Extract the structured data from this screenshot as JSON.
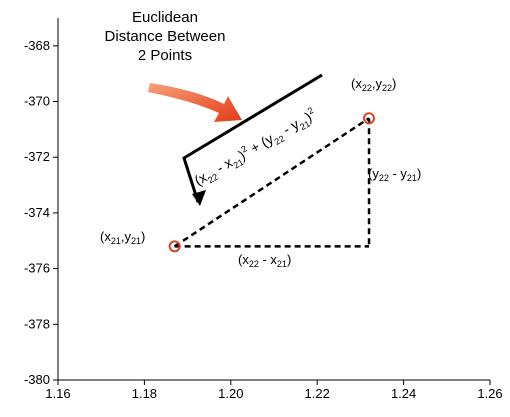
{
  "title": {
    "lines": [
      "Euclidean",
      "Distance Between",
      "2 Points"
    ]
  },
  "axes": {
    "x_ticks": [
      "1.16",
      "1.18",
      "1.20",
      "1.22",
      "1.24",
      "1.26"
    ],
    "y_ticks": [
      "-368",
      "-370",
      "-372",
      "-374",
      "-376",
      "-378",
      "-380"
    ],
    "x_range": [
      1.16,
      1.26
    ],
    "y_range": [
      -380,
      -367
    ],
    "x_tick_values": [
      1.16,
      1.18,
      1.2,
      1.22,
      1.24,
      1.26
    ],
    "y_tick_values": [
      -368,
      -370,
      -372,
      -374,
      -376,
      -378,
      -380
    ]
  },
  "points": [
    {
      "x": 1.187,
      "y": -375.2,
      "label_base": "(x",
      "label_sub1": "21",
      "label_mid": ",y",
      "label_sub2": "21",
      "label_end": ")"
    },
    {
      "x": 1.232,
      "y": -370.6,
      "label_base": "(x",
      "label_sub1": "22",
      "label_mid": ",y",
      "label_sub2": "22",
      "label_end": ")"
    }
  ],
  "delta_x_label": {
    "a": "(x",
    "s1": "22",
    "m": " - x",
    "s2": "21",
    "e": ")"
  },
  "delta_y_label": {
    "a": "(y",
    "s1": "22",
    "m": " - y",
    "s2": "21",
    "e": ")"
  },
  "formula": {
    "p1": "(x",
    "s1": "22",
    "p2": " - x",
    "s2": "21",
    "p3": ")",
    "e1": "2",
    "p4": " + (y",
    "s3": "22",
    "p5": " - y",
    "s4": "21",
    "p6": ")",
    "e2": "2"
  },
  "colors": {
    "point": "#d9432a",
    "arrow": "#ea4a24",
    "lines": "#000000"
  }
}
